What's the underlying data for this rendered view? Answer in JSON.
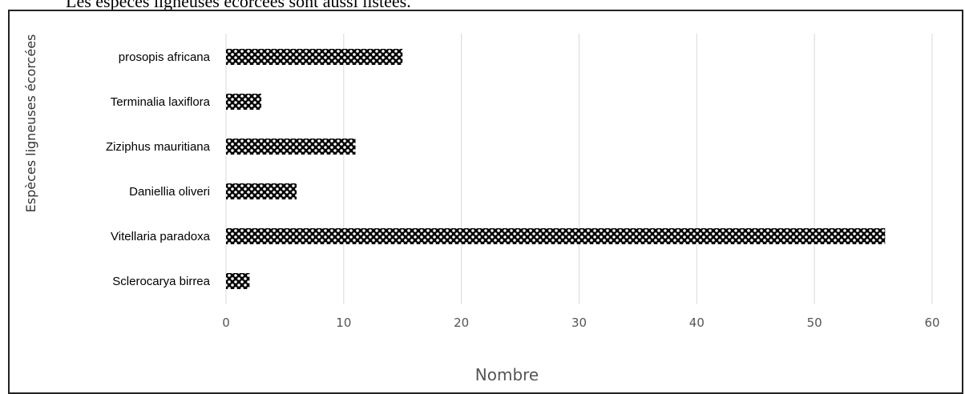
{
  "caption": "Les espèces ligneuses écorcées sont aussi listées.",
  "chart_data": {
    "type": "bar",
    "orientation": "horizontal",
    "categories": [
      "prosopis africana",
      "Terminalia laxiflora",
      "Ziziphus mauritiana",
      "Daniellia oliveri",
      "Vitellaria paradoxa",
      "Sclerocarya birrea"
    ],
    "values": [
      15,
      3,
      11,
      6,
      56,
      2
    ],
    "xlabel": "Nombre",
    "ylabel": "Espèces ligneuses écorcées",
    "xlim": [
      0,
      60
    ],
    "xticks": [
      "0",
      "10",
      "20",
      "30",
      "40",
      "50",
      "60"
    ],
    "grid": true,
    "bar_fill": "checkered",
    "colors": {
      "bar_dark": "#000000",
      "bar_light": "#ffffff",
      "grid": "#d9d9d9"
    }
  }
}
